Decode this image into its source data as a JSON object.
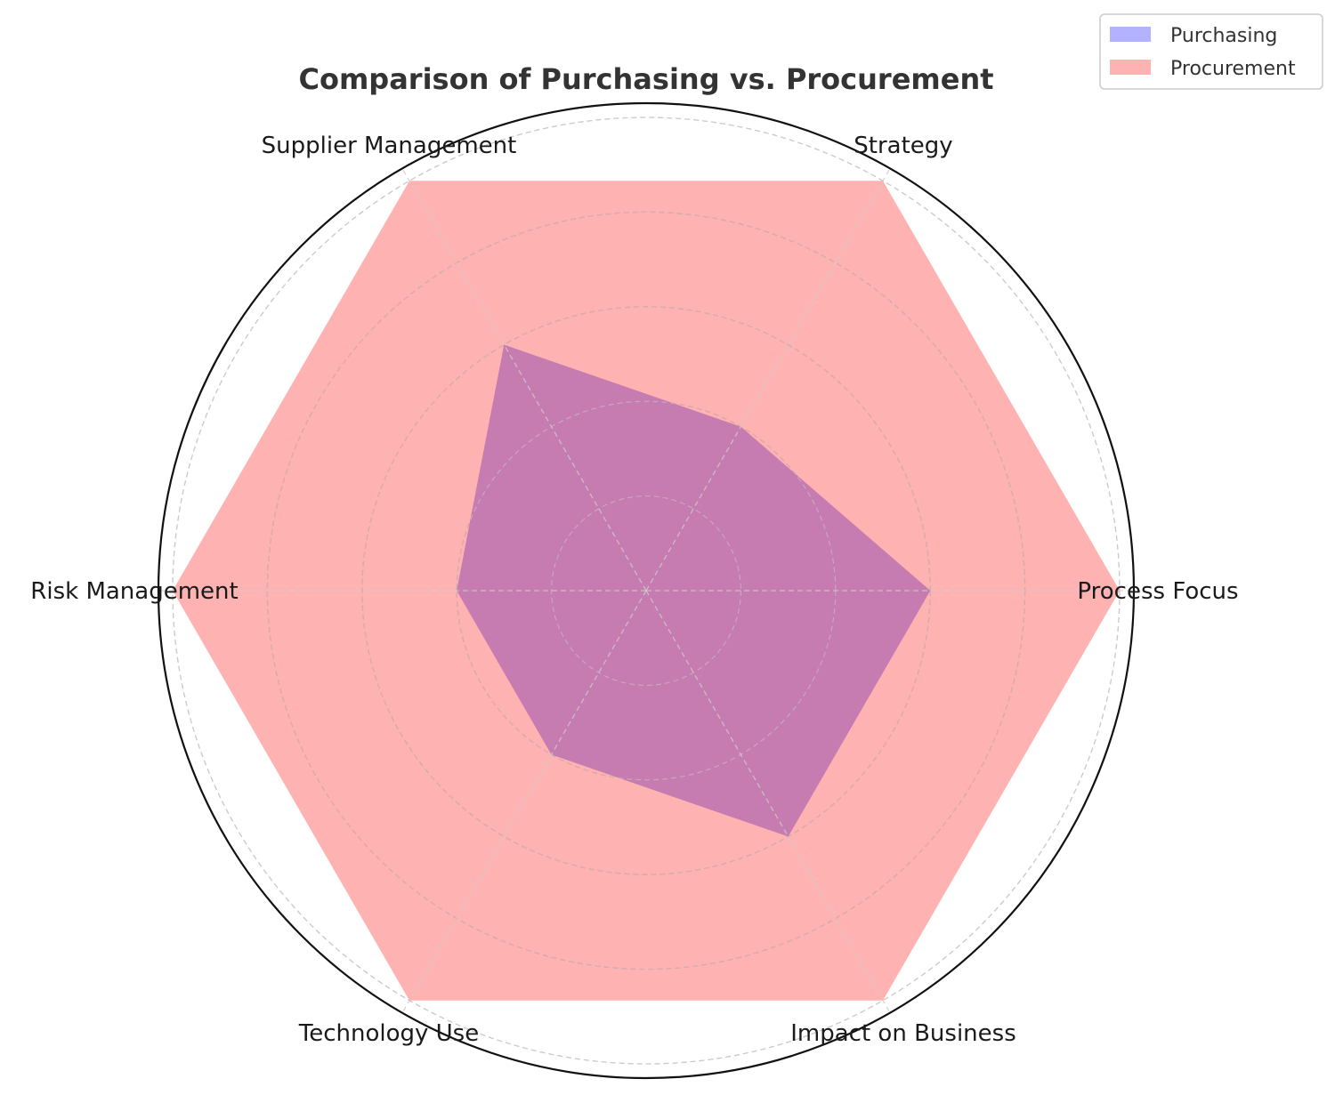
{
  "chart_data": {
    "type": "radar",
    "title": "Comparison of Purchasing vs. Procurement",
    "categories": [
      "Process Focus",
      "Strategy",
      "Supplier Management",
      "Risk Management",
      "Technology Use",
      "Impact on Business"
    ],
    "rmax": 5,
    "grid": true,
    "legend_position": "top-right",
    "series": [
      {
        "name": "Purchasing",
        "values": [
          3,
          2,
          3,
          2,
          2,
          3
        ],
        "color": "#0000ff",
        "alpha": 0.3
      },
      {
        "name": "Procurement",
        "values": [
          5,
          5,
          5,
          5,
          5,
          5
        ],
        "color": "#ff0000",
        "alpha": 0.3
      }
    ],
    "blend_color": "#c77cb1"
  }
}
